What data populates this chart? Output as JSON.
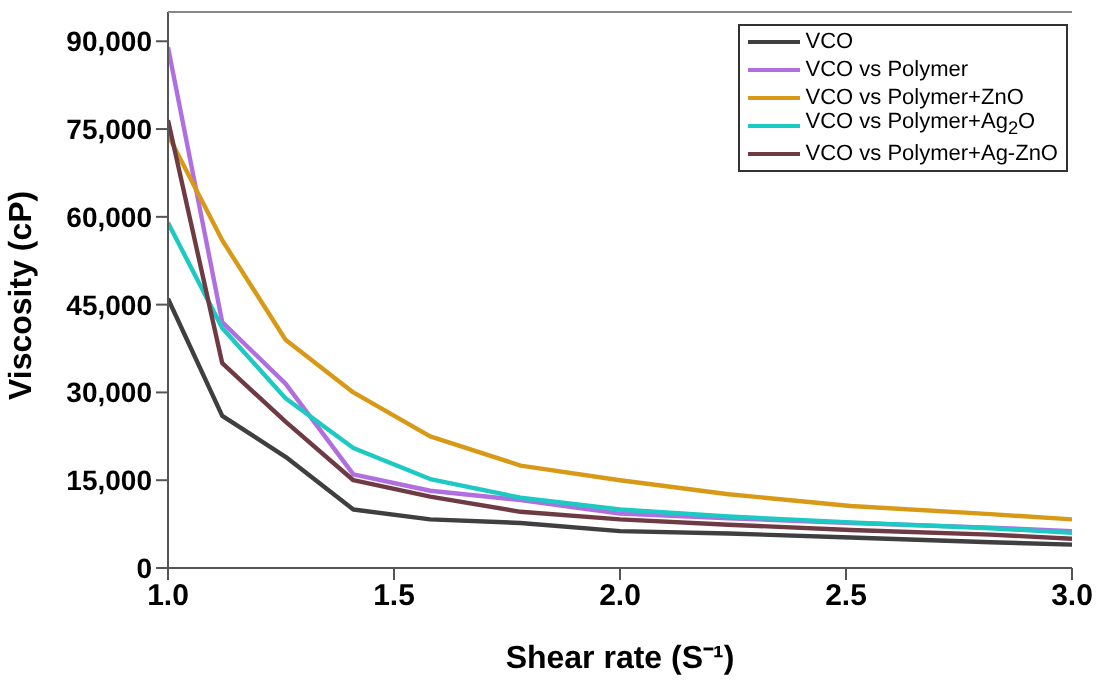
{
  "chart_data": {
    "type": "line",
    "xlabel": "Shear rate (S⁻¹)",
    "ylabel": "Viscosity (cP)",
    "x": [
      1.0,
      1.12,
      1.26,
      1.41,
      1.58,
      1.78,
      2.0,
      2.24,
      2.51,
      2.82,
      3.0
    ],
    "xlim": [
      1.0,
      3.0
    ],
    "xticks": [
      {
        "value": 1.0,
        "label": "1.0"
      },
      {
        "value": 1.5,
        "label": "1.5"
      },
      {
        "value": 2.0,
        "label": "2.0"
      },
      {
        "value": 2.5,
        "label": "2.5"
      },
      {
        "value": 3.0,
        "label": "3.0"
      }
    ],
    "ylim": [
      0,
      95000
    ],
    "yticks": [
      0,
      {
        "value": 15000,
        "label": "15,000"
      },
      {
        "value": 30000,
        "label": "30,000"
      },
      {
        "value": 45000,
        "label": "45,000"
      },
      {
        "value": 60000,
        "label": "60,000"
      },
      {
        "value": 75000,
        "label": "75,000"
      },
      {
        "value": 90000,
        "label": "90,000"
      }
    ],
    "series": [
      {
        "name": "VCO",
        "color": "#3f3f3f",
        "values": [
          46000,
          26000,
          19000,
          10000,
          8300,
          7700,
          6300,
          5900,
          5200,
          4400,
          4000
        ]
      },
      {
        "name": "VCO vs Polymer",
        "color": "#b06ee0",
        "values": [
          89000,
          42000,
          31500,
          16000,
          13200,
          11600,
          9300,
          8500,
          7700,
          6900,
          6300
        ]
      },
      {
        "name": "VCO vs Polymer+ZnO",
        "color": "#d89a16",
        "values": [
          74000,
          56000,
          39000,
          30000,
          22500,
          17500,
          15000,
          12600,
          10600,
          9200,
          8300
        ]
      },
      {
        "name": "VCO vs Polymer+Ag$_{2}$O",
        "color": "#1cc9c3",
        "values": [
          59000,
          41000,
          29000,
          20500,
          15200,
          12000,
          10000,
          8800,
          7800,
          6800,
          6000
        ]
      },
      {
        "name": "VCO vs Polymer+Ag-ZnO",
        "color": "#6e3a44",
        "values": [
          76500,
          35000,
          25000,
          15000,
          12200,
          9600,
          8300,
          7400,
          6500,
          5700,
          5000
        ]
      }
    ],
    "legend": "top right",
    "grid": false,
    "marker": "none",
    "line_style": "solid"
  }
}
